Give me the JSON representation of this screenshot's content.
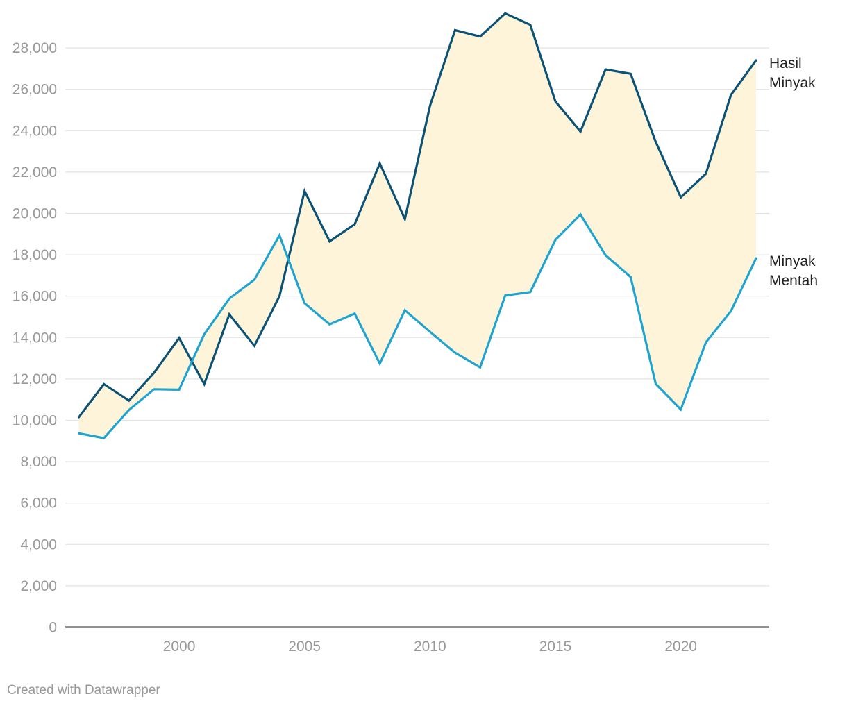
{
  "chart_data": {
    "type": "line",
    "title": "",
    "xlabel": "",
    "ylabel": "",
    "x": [
      1996,
      1997,
      1998,
      1999,
      2000,
      2001,
      2002,
      2003,
      2004,
      2005,
      2006,
      2007,
      2008,
      2009,
      2010,
      2011,
      2012,
      2013,
      2014,
      2015,
      2016,
      2017,
      2018,
      2019,
      2020,
      2021,
      2022,
      2023
    ],
    "series": [
      {
        "name": "Hasil Minyak",
        "name_lines": [
          "Hasil",
          "Minyak"
        ],
        "color": "#0b5275",
        "values": [
          10150,
          11750,
          10950,
          12300,
          13980,
          11750,
          15120,
          13600,
          16000,
          21080,
          18650,
          19480,
          22420,
          19730,
          25200,
          28860,
          28550,
          29670,
          29120,
          25420,
          23960,
          26960,
          26750,
          23460,
          20780,
          21920,
          25730,
          27400
        ]
      },
      {
        "name": "Minyak Mentah",
        "name_lines": [
          "Minyak",
          "Mentah"
        ],
        "color": "#1fa3cf",
        "values": [
          9370,
          9140,
          10500,
          11500,
          11480,
          14160,
          15880,
          16800,
          18940,
          15660,
          14640,
          15160,
          12740,
          15320,
          14280,
          13270,
          12560,
          16030,
          16200,
          18720,
          19950,
          17980,
          16930,
          11760,
          10520,
          13770,
          15280,
          17830
        ]
      }
    ],
    "area_between": {
      "color": "#fdf4da"
    },
    "yticks": [
      0,
      2000,
      4000,
      6000,
      8000,
      10000,
      12000,
      14000,
      16000,
      18000,
      20000,
      22000,
      24000,
      26000,
      28000
    ],
    "ytick_labels": [
      "0",
      "2,000",
      "4,000",
      "6,000",
      "8,000",
      "10,000",
      "12,000",
      "14,000",
      "16,000",
      "18,000",
      "20,000",
      "22,000",
      "24,000",
      "26,000",
      "28,000"
    ],
    "xticks": [
      2000,
      2005,
      2010,
      2015,
      2020
    ],
    "xtick_labels": [
      "2000",
      "2005",
      "2010",
      "2015",
      "2020"
    ],
    "ylim": [
      0,
      30000
    ],
    "xlim": [
      1995.5,
      2024
    ],
    "grid": true,
    "legend": "direct-labels-right"
  },
  "footer": {
    "credit": "Created with Datawrapper"
  }
}
